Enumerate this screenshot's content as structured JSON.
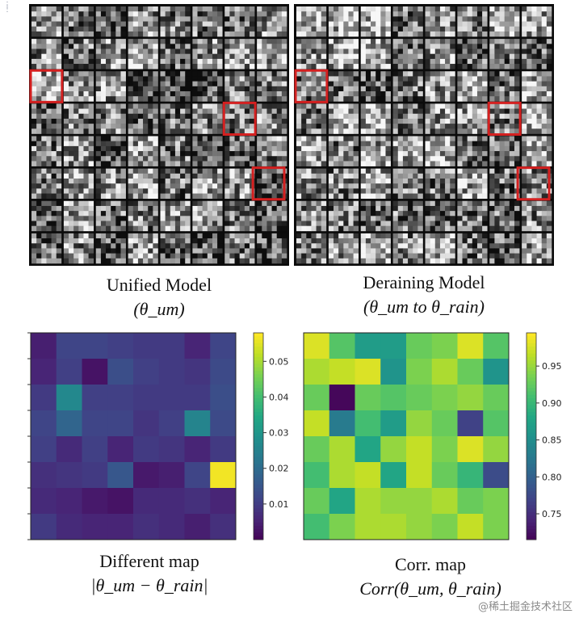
{
  "captions": {
    "unified": {
      "line1": "Unified Model",
      "line2": "(θ_um)"
    },
    "deraining": {
      "line1": "Deraining  Model",
      "line2": "(θ_um to θ_rain)"
    },
    "different": {
      "line1": "Different map",
      "line2": "|θ_um − θ_rain|"
    },
    "corr": {
      "line1": "Corr. map",
      "line2": "Corr(θ_um, θ_rain)"
    }
  },
  "watermark": "@稀土掘金技术社区",
  "kernel_grid": {
    "rows": 8,
    "cols": 8,
    "highlighted_cells": [
      [
        2,
        1
      ],
      [
        3,
        7
      ],
      [
        5,
        8
      ]
    ]
  },
  "colors": {
    "highlight": "#d42020",
    "viridis_low": "#440154",
    "viridis_high": "#fde725"
  },
  "chart_data": [
    {
      "type": "heatmap",
      "title": "Different map",
      "colorbar_ticks": [
        "0.05",
        "0.04",
        "0.03",
        "0.02",
        "0.01"
      ],
      "colorbar_tick_values": [
        0.05,
        0.04,
        0.03,
        0.02,
        0.01
      ],
      "vmin": 0.0,
      "vmax": 0.058,
      "values": [
        [
          0.005,
          0.012,
          0.012,
          0.011,
          0.01,
          0.01,
          0.006,
          0.012
        ],
        [
          0.006,
          0.011,
          0.003,
          0.014,
          0.011,
          0.01,
          0.009,
          0.013
        ],
        [
          0.01,
          0.027,
          0.011,
          0.011,
          0.01,
          0.01,
          0.01,
          0.014
        ],
        [
          0.012,
          0.019,
          0.012,
          0.012,
          0.009,
          0.011,
          0.026,
          0.013
        ],
        [
          0.011,
          0.007,
          0.011,
          0.006,
          0.01,
          0.009,
          0.006,
          0.01
        ],
        [
          0.008,
          0.009,
          0.01,
          0.016,
          0.004,
          0.005,
          0.012,
          0.057
        ],
        [
          0.007,
          0.006,
          0.004,
          0.003,
          0.007,
          0.007,
          0.008,
          0.006
        ],
        [
          0.01,
          0.007,
          0.006,
          0.006,
          0.008,
          0.007,
          0.005,
          0.008
        ]
      ]
    },
    {
      "type": "heatmap",
      "title": "Corr. map",
      "colorbar_ticks": [
        "0.95",
        "0.90",
        "0.85",
        "0.80",
        "0.75"
      ],
      "colorbar_tick_values": [
        0.95,
        0.9,
        0.85,
        0.8,
        0.75
      ],
      "vmin": 0.715,
      "vmax": 0.995,
      "values": [
        [
          0.98,
          0.92,
          0.87,
          0.87,
          0.93,
          0.94,
          0.98,
          0.92
        ],
        [
          0.96,
          0.97,
          0.98,
          0.86,
          0.94,
          0.96,
          0.93,
          0.86
        ],
        [
          0.93,
          0.72,
          0.93,
          0.92,
          0.93,
          0.94,
          0.95,
          0.93
        ],
        [
          0.97,
          0.83,
          0.91,
          0.87,
          0.95,
          0.93,
          0.77,
          0.92
        ],
        [
          0.93,
          0.96,
          0.88,
          0.95,
          0.97,
          0.94,
          0.98,
          0.95
        ],
        [
          0.91,
          0.96,
          0.97,
          0.88,
          0.97,
          0.93,
          0.9,
          0.78
        ],
        [
          0.93,
          0.88,
          0.96,
          0.95,
          0.95,
          0.96,
          0.93,
          0.94
        ],
        [
          0.91,
          0.94,
          0.96,
          0.96,
          0.95,
          0.94,
          0.97,
          0.94
        ]
      ]
    }
  ]
}
